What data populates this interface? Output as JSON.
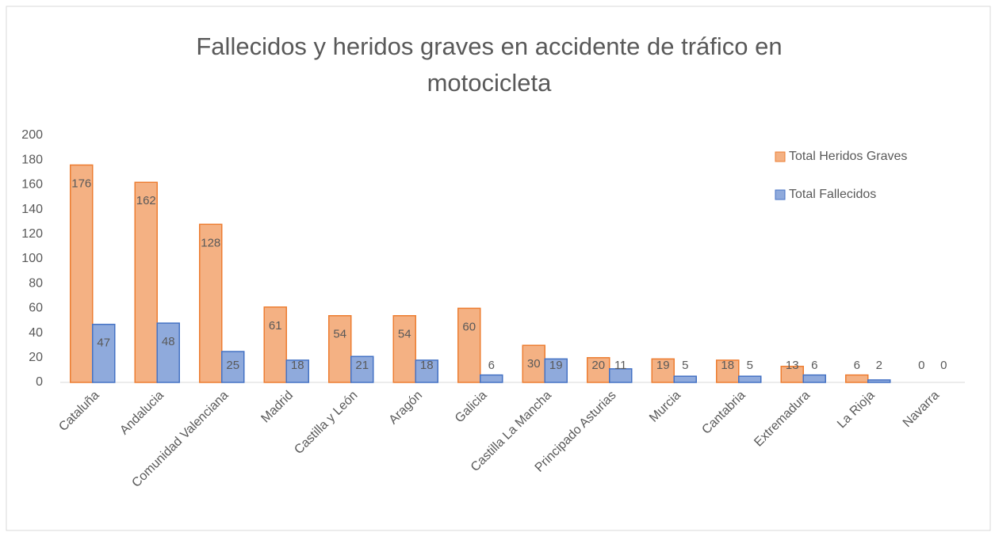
{
  "chart_data": {
    "type": "bar",
    "title": "Fallecidos y heridos graves en accidente de tráfico en motocicleta",
    "categories": [
      "Cataluña",
      "Andalucia",
      "Comunidad Valenciana",
      "Madrid",
      "Castilla y León",
      "Aragón",
      "Galicia",
      "Castilla La Mancha",
      "Principado Asturias",
      "Murcia",
      "Cantabria",
      "Extremadura",
      "La Rioja",
      "Navarra"
    ],
    "series": [
      {
        "name": "Total Heridos Graves",
        "color": "#f4b183",
        "values": [
          176,
          162,
          128,
          61,
          54,
          54,
          60,
          30,
          20,
          19,
          18,
          13,
          6,
          0
        ]
      },
      {
        "name": "Total Fallecidos",
        "color": "#8faadc",
        "values": [
          47,
          48,
          25,
          18,
          21,
          18,
          6,
          19,
          11,
          5,
          5,
          6,
          2,
          0
        ]
      }
    ],
    "ylim": [
      0,
      200
    ],
    "yticks": [
      0,
      20,
      40,
      60,
      80,
      100,
      120,
      140,
      160,
      180,
      200
    ],
    "grid": false,
    "legend": "right",
    "data_labels": true
  }
}
